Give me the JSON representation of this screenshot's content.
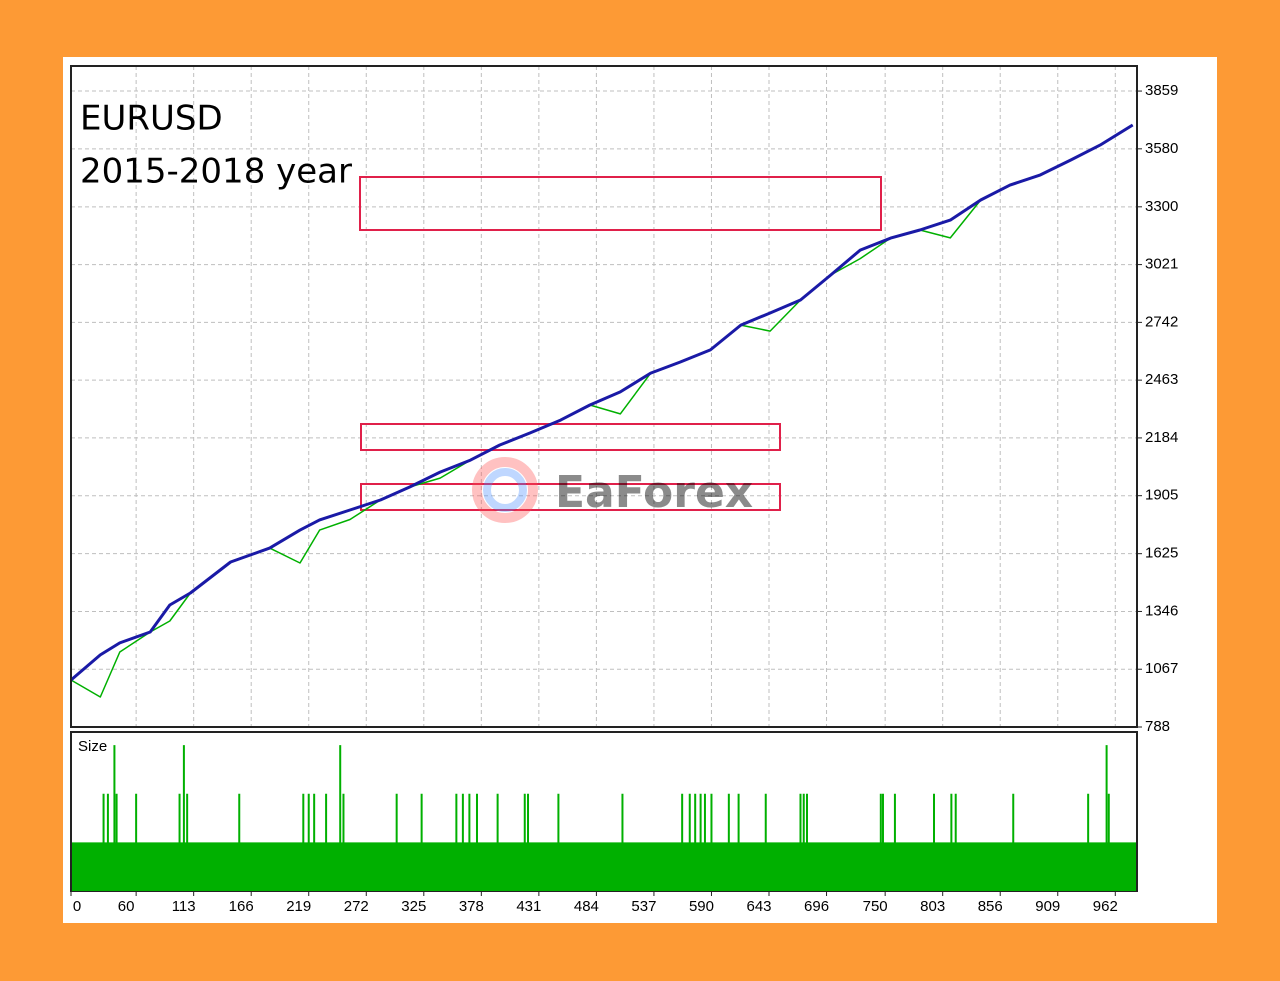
{
  "chart_data": [
    {
      "type": "line",
      "annotations": [
        "EURUSD",
        "2015-2018 year"
      ],
      "watermark": "EaForex",
      "x": [
        0,
        27,
        45,
        73,
        91,
        110,
        147,
        183,
        211,
        229,
        257,
        285,
        312,
        340,
        368,
        395,
        423,
        451,
        478,
        506,
        534,
        561,
        589,
        617,
        644,
        672,
        700,
        727,
        755,
        782,
        810,
        838,
        865,
        893,
        921,
        948,
        978
      ],
      "series": [
        {
          "color": "#00b000",
          "values": [
            1015,
            933,
            1150,
            1247,
            1300,
            1435,
            1585,
            1652,
            1580,
            1739,
            1790,
            1884,
            1947,
            1990,
            2077,
            2150,
            2208,
            2270,
            2343,
            2300,
            2497,
            2550,
            2609,
            2729,
            2700,
            2850,
            2971,
            3050,
            3149,
            3188,
            3150,
            3333,
            3405,
            3454,
            3526,
            3598,
            3695
          ]
        },
        {
          "color": "#1a1aa6",
          "values": [
            1015,
            1136,
            1194,
            1247,
            1377,
            1435,
            1585,
            1652,
            1739,
            1788,
            1836,
            1884,
            1947,
            2019,
            2077,
            2150,
            2208,
            2270,
            2343,
            2406,
            2497,
            2550,
            2609,
            2729,
            2787,
            2850,
            2971,
            3091,
            3149,
            3188,
            3236,
            3333,
            3405,
            3454,
            3526,
            3598,
            3695
          ]
        }
      ],
      "xlim": [
        0,
        982
      ],
      "ylim": [
        788,
        3980
      ],
      "yticks": [
        788,
        1067,
        1346,
        1625,
        1905,
        2184,
        2463,
        2742,
        3021,
        3300,
        3580,
        3859
      ],
      "grid": true
    },
    {
      "type": "bar",
      "y_label": "Size",
      "color": "#00b000",
      "base": 1,
      "x": [
        30,
        34,
        40,
        42,
        60,
        100,
        104,
        107,
        155,
        214,
        219,
        224,
        235,
        248,
        251,
        300,
        323,
        355,
        361,
        367,
        374,
        393,
        418,
        421,
        449,
        508,
        563,
        570,
        575,
        580,
        584,
        590,
        606,
        615,
        640,
        672,
        675,
        678,
        746,
        748,
        759,
        795,
        811,
        815,
        868,
        937,
        954,
        956
      ],
      "values": [
        2,
        2,
        3,
        2,
        2,
        2,
        3,
        2,
        2,
        2,
        2,
        2,
        2,
        3,
        2,
        2,
        2,
        2,
        2,
        2,
        2,
        2,
        2,
        2,
        2,
        2,
        2,
        2,
        2,
        2,
        2,
        2,
        2,
        2,
        2,
        2,
        2,
        2,
        2,
        2,
        2,
        2,
        2,
        2,
        2,
        2,
        3,
        2
      ],
      "xlim": [
        0,
        982
      ],
      "ylim": [
        0,
        3.27
      ],
      "xticks": [
        0,
        60,
        113,
        166,
        219,
        272,
        325,
        378,
        431,
        484,
        537,
        590,
        643,
        696,
        750,
        803,
        856,
        909,
        962
      ]
    }
  ]
}
